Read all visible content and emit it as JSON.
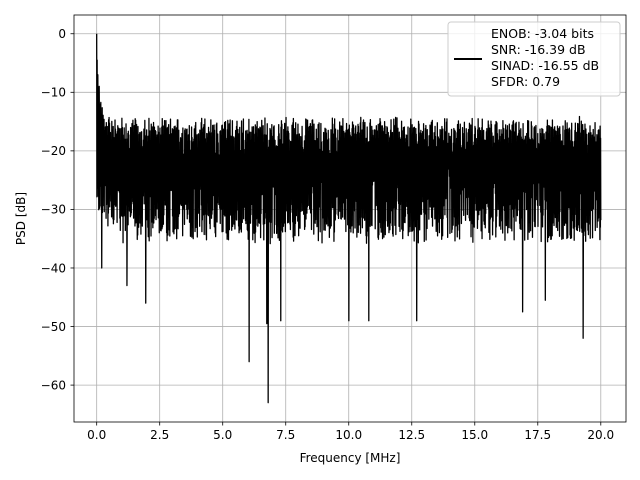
{
  "chart_data": {
    "type": "line",
    "xlabel": "Frequency [MHz]",
    "ylabel": "PSD [dB]",
    "xlim": [
      -0.9,
      21.0
    ],
    "ylim": [
      -66.3,
      3.2
    ],
    "xticks": [
      0.0,
      2.5,
      5.0,
      7.5,
      10.0,
      12.5,
      15.0,
      17.5,
      20.0
    ],
    "xtick_labels": [
      "0.0",
      "2.5",
      "5.0",
      "7.5",
      "10.0",
      "12.5",
      "15.0",
      "17.5",
      "20.0"
    ],
    "yticks": [
      0,
      -10,
      -20,
      -30,
      -40,
      -50,
      -60
    ],
    "ytick_labels": [
      "0",
      "−10",
      "−20",
      "−30",
      "−40",
      "−50",
      "−60"
    ],
    "grid": true,
    "legend_position": "top-right",
    "series": [
      {
        "name": "ENOB: -3.04 bits\nSNR: -16.39 dB\nSINAD: -16.55 dB\nSFDR: 0.79",
        "color": "#000000",
        "x_range": [
          0.0,
          20.0
        ],
        "noise_floor_db": -22.5,
        "upper_envelope_db": -15.0,
        "lower_envelope_db": -35.0,
        "dc_peak": {
          "x": 0.0,
          "y": 0.0
        },
        "spurs": [
          {
            "x": 0.02,
            "y": -4.5
          },
          {
            "x": 0.05,
            "y": -7.0
          },
          {
            "x": 0.1,
            "y": -9.0
          },
          {
            "x": 0.15,
            "y": -12.0
          },
          {
            "x": 0.25,
            "y": -14.0
          },
          {
            "x": 10.0,
            "y": -9.2
          },
          {
            "x": 0.2,
            "y": -40.0
          },
          {
            "x": 1.2,
            "y": -43.0
          },
          {
            "x": 1.95,
            "y": -46.0
          },
          {
            "x": 6.05,
            "y": -56.0
          },
          {
            "x": 6.8,
            "y": -63.0
          },
          {
            "x": 6.75,
            "y": -49.5
          },
          {
            "x": 7.3,
            "y": -49.0
          },
          {
            "x": 10.0,
            "y": -49.0
          },
          {
            "x": 10.8,
            "y": -49.0
          },
          {
            "x": 12.7,
            "y": -49.0
          },
          {
            "x": 16.9,
            "y": -47.5
          },
          {
            "x": 17.8,
            "y": -45.5
          },
          {
            "x": 19.3,
            "y": -52.0
          }
        ]
      }
    ]
  }
}
